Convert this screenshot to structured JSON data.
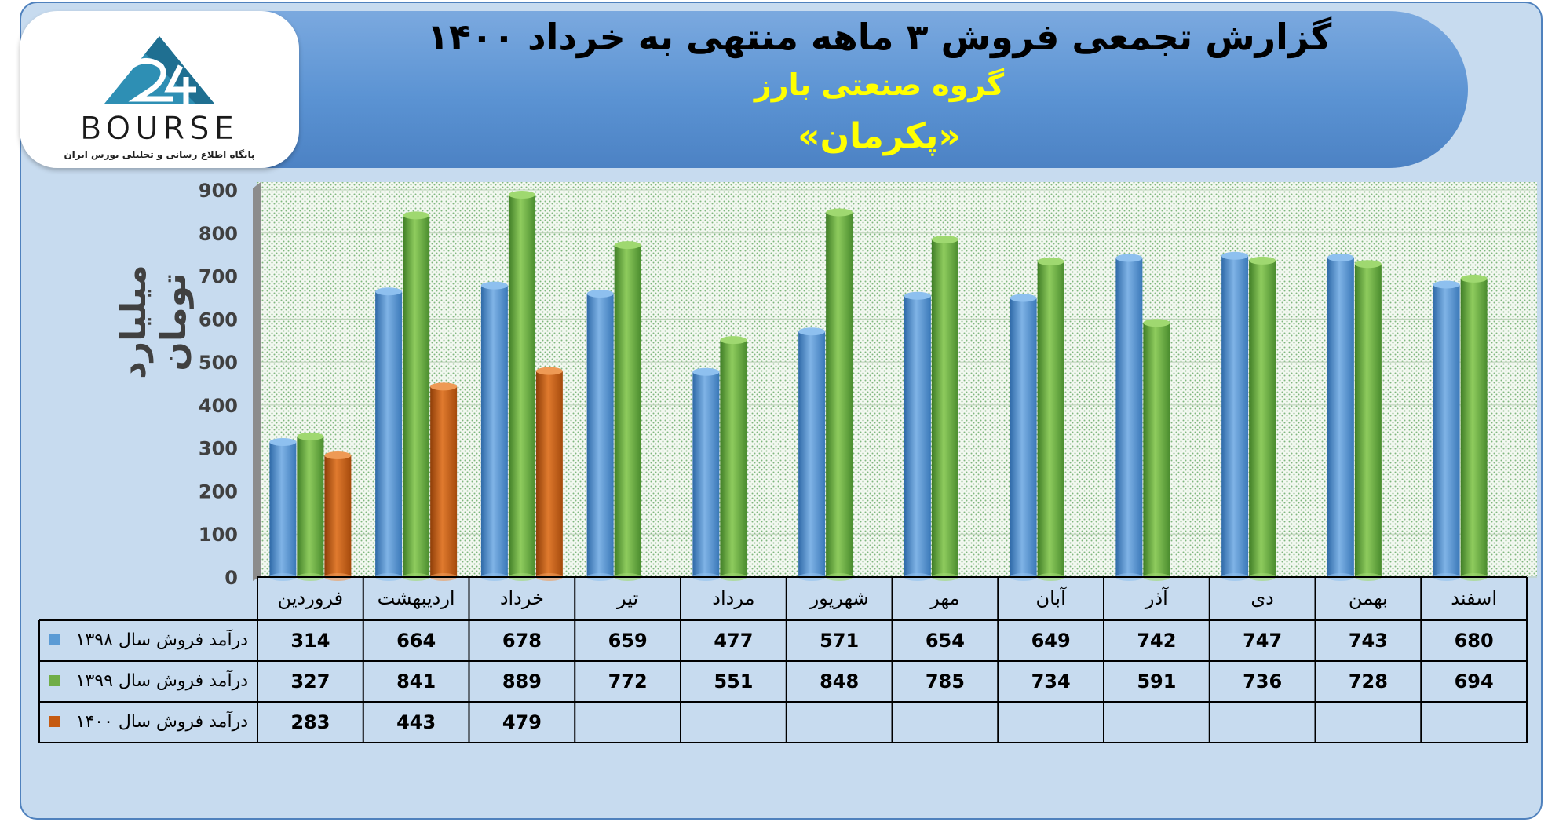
{
  "header": {
    "title": "گزارش تجمعی فروش ۳ ماهه منتهی به خرداد ۱۴۰۰",
    "subtitle": "گروه صنعتی بارز",
    "company": "«پکرمان»"
  },
  "logo": {
    "brand": "BOURSE",
    "tagline": "پایگاه اطلاع رسانی و تحلیلی بورس ایران"
  },
  "colors": {
    "series_1398": "#5b9bd5",
    "series_1399": "#70ad47",
    "series_1400": "#c55a11",
    "banner": "#5b93d3",
    "frame": "#c7dbef"
  },
  "chart_data": {
    "type": "bar",
    "ylabel": "میلیارد تومان",
    "ylim": [
      0,
      900
    ],
    "yticks": [
      "0",
      "100",
      "200",
      "300",
      "400",
      "500",
      "600",
      "700",
      "800",
      "900"
    ],
    "categories": [
      "فروردین",
      "اردیبهشت",
      "خرداد",
      "تیر",
      "مرداد",
      "شهریور",
      "مهر",
      "آبان",
      "آذر",
      "دی",
      "بهمن",
      "اسفند"
    ],
    "series": [
      {
        "name": "درآمد فروش سال ۱۳۹۸",
        "values": [
          314,
          664,
          678,
          659,
          477,
          571,
          654,
          649,
          742,
          747,
          743,
          680
        ]
      },
      {
        "name": "درآمد فروش سال ۱۳۹۹",
        "values": [
          327,
          841,
          889,
          772,
          551,
          848,
          785,
          734,
          591,
          736,
          728,
          694
        ]
      },
      {
        "name": "درآمد فروش سال ۱۴۰۰",
        "values": [
          283,
          443,
          479,
          null,
          null,
          null,
          null,
          null,
          null,
          null,
          null,
          null
        ]
      }
    ],
    "grid": true,
    "legend": "data-table"
  }
}
